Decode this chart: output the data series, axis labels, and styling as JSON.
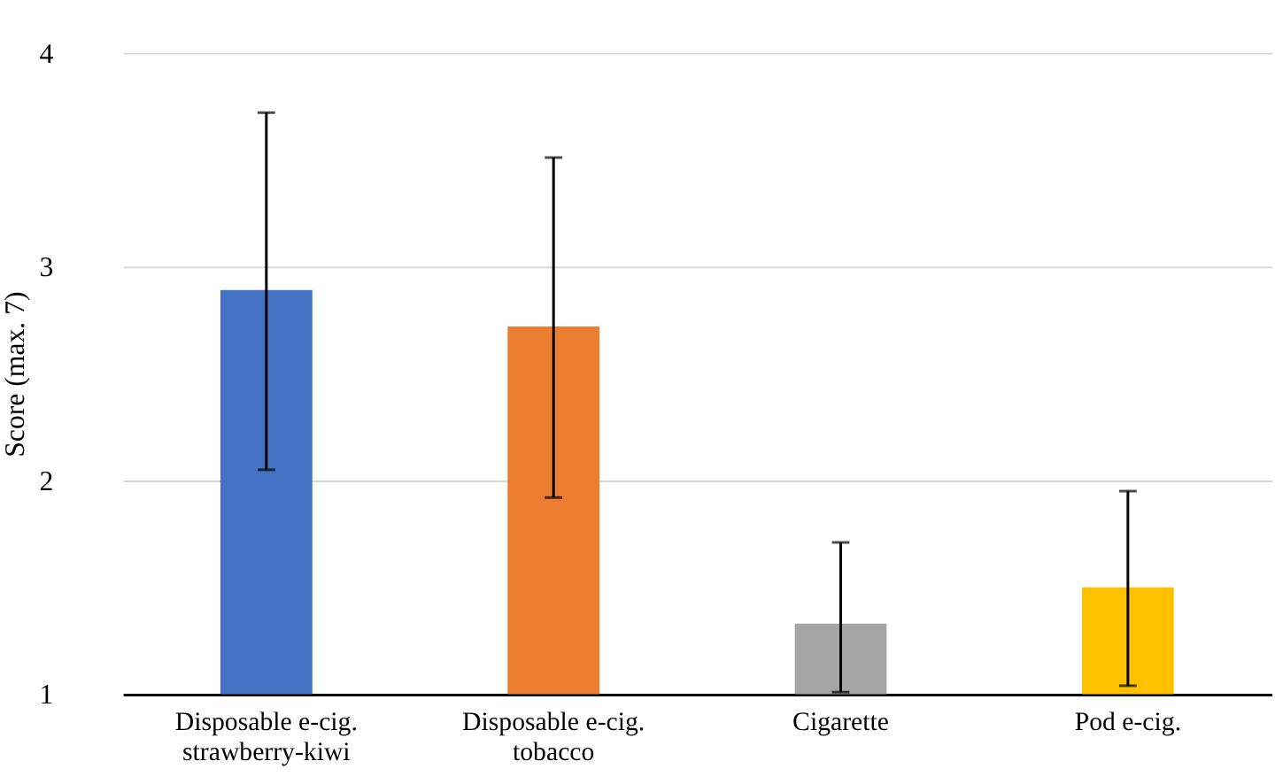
{
  "chart_data": {
    "type": "bar",
    "ylabel": "Score (max. 7)",
    "categories": [
      "Disposable e-cig.\nstrawberry-kiwi",
      "Disposable e-cig.\ntobacco",
      "Cigarette",
      "Pod e-cig."
    ],
    "values": [
      2.89,
      2.72,
      1.33,
      1.5
    ],
    "errors": [
      [
        2.05,
        3.72
      ],
      [
        1.92,
        3.51
      ],
      [
        1.01,
        1.71
      ],
      [
        1.04,
        1.95
      ]
    ],
    "colors": [
      "#4472c4",
      "#ed7d31",
      "#a5a5a5",
      "#ffc000"
    ],
    "ylim": [
      1,
      4
    ],
    "yticks": [
      1,
      2,
      3,
      4
    ],
    "grid": "y"
  }
}
